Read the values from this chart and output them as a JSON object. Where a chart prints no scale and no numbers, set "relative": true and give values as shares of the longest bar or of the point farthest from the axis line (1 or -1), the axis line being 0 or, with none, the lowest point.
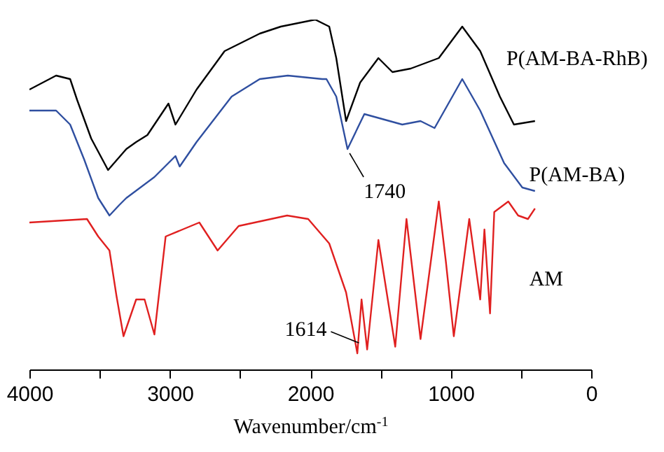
{
  "chart_data": {
    "type": "line",
    "relative": true,
    "xlabel": "Wavenumber/cm$^{-1}$",
    "xlim": [
      4000,
      0
    ],
    "xticks": [
      4000,
      {
        "value": 3500,
        "label": null
      },
      3000,
      {
        "value": 2500,
        "label": null
      },
      2000,
      {
        "value": 1500,
        "label": null
      },
      1000,
      {
        "value": 500,
        "label": null
      },
      0
    ],
    "annotations": [
      {
        "text": "1740",
        "x": 1740,
        "y": 0.63
      },
      {
        "text": "1614",
        "x": 1614,
        "y": 0.06
      }
    ],
    "series": [
      {
        "name": "P(AM-BA-RhB)",
        "color": "#000000",
        "x": [
          4000,
          3810,
          3710,
          3660,
          3560,
          3440,
          3310,
          3240,
          3160,
          3010,
          2960,
          2930,
          2810,
          2610,
          2360,
          2210,
          1965,
          1865,
          1815,
          1745,
          1645,
          1515,
          1415,
          1285,
          1085,
          918,
          790,
          650,
          550,
          400
        ],
        "values": [
          0.8,
          0.84,
          0.83,
          0.77,
          0.66,
          0.57,
          0.63,
          0.65,
          0.67,
          0.76,
          0.7,
          0.72,
          0.8,
          0.91,
          0.96,
          0.98,
          1.0,
          0.98,
          0.89,
          0.71,
          0.82,
          0.89,
          0.85,
          0.86,
          0.89,
          0.98,
          0.91,
          0.78,
          0.7,
          0.71
        ]
      },
      {
        "name": "P(AM-BA)",
        "color": "#2f4fa0",
        "x": [
          4000,
          3810,
          3710,
          3610,
          3510,
          3430,
          3360,
          3310,
          3110,
          2960,
          2930,
          2810,
          2560,
          2360,
          2160,
          1915,
          1885,
          1815,
          1735,
          1615,
          1345,
          1215,
          1115,
          918,
          790,
          620,
          490,
          400
        ],
        "values": [
          0.74,
          0.74,
          0.7,
          0.6,
          0.49,
          0.44,
          0.47,
          0.49,
          0.55,
          0.61,
          0.58,
          0.65,
          0.78,
          0.83,
          0.84,
          0.83,
          0.83,
          0.78,
          0.63,
          0.73,
          0.7,
          0.71,
          0.69,
          0.83,
          0.74,
          0.59,
          0.52,
          0.51
        ]
      },
      {
        "name": "AM",
        "color": "#e02020",
        "x": [
          4000,
          3590,
          3510,
          3430,
          3380,
          3330,
          3240,
          3180,
          3110,
          3030,
          2910,
          2790,
          2660,
          2510,
          2165,
          2015,
          1865,
          1745,
          1665,
          1635,
          1595,
          1515,
          1395,
          1315,
          1215,
          1085,
          1035,
          978,
          868,
          790,
          760,
          720,
          690,
          590,
          520,
          450,
          400
        ],
        "values": [
          0.42,
          0.43,
          0.38,
          0.34,
          0.21,
          0.095,
          0.2,
          0.2,
          0.1,
          0.38,
          0.4,
          0.42,
          0.34,
          0.41,
          0.44,
          0.43,
          0.36,
          0.22,
          0.046,
          0.2,
          0.057,
          0.37,
          0.065,
          0.43,
          0.087,
          0.48,
          0.31,
          0.095,
          0.43,
          0.2,
          0.4,
          0.16,
          0.45,
          0.48,
          0.44,
          0.43,
          0.46
        ]
      }
    ]
  }
}
